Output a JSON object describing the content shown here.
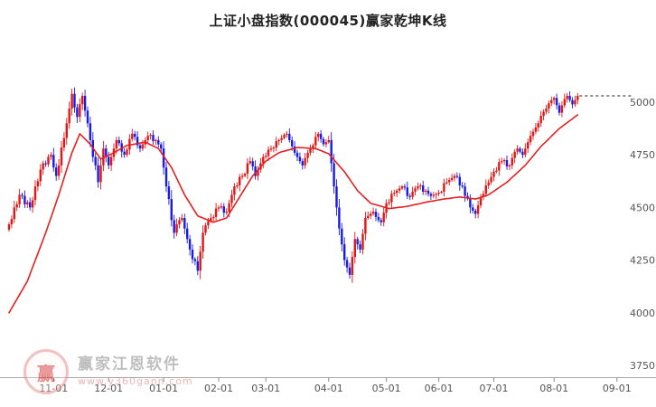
{
  "page": {
    "title": "上证小盘指数(000045)赢家乾坤K线"
  },
  "watermark": {
    "logo_char": "赢",
    "brand": "赢家江恩软件",
    "url": "www.y360gann.com"
  },
  "chart_data": {
    "type": "candlestick",
    "title": "上证小盘指数(000045)赢家乾坤K线",
    "xlabel": "",
    "ylabel": "",
    "grid": false,
    "legend": "none",
    "y_ticks": [
      5000,
      4750,
      4500,
      4250,
      4000,
      3750
    ],
    "ylim": [
      3750,
      5100
    ],
    "x_tick_labels": [
      "11-01",
      "12-01",
      "01-01",
      "02-01",
      "03-01",
      "04-01",
      "05-01",
      "06-01",
      "07-01",
      "08-01",
      "09-01"
    ],
    "x_tick_days": [
      17,
      38,
      59,
      80,
      98,
      122,
      144,
      164,
      185,
      208,
      232
    ],
    "last_price": 5030,
    "colors": {
      "up": "#e61414",
      "down": "#1a1ae6",
      "ma": "#e62020",
      "dotted": "#222222",
      "axis_line": "#aaaaaa",
      "tick_text": "#555555",
      "background": "#ffffff"
    },
    "closes": [
      4420,
      4445,
      4500,
      4515,
      4560,
      4555,
      4515,
      4525,
      4500,
      4535,
      4600,
      4625,
      4680,
      4710,
      4705,
      4740,
      4750,
      4690,
      4650,
      4700,
      4785,
      4830,
      4900,
      4970,
      5040,
      4975,
      4930,
      4990,
      5030,
      4960,
      4900,
      4820,
      4740,
      4700,
      4620,
      4700,
      4780,
      4740,
      4700,
      4740,
      4780,
      4820,
      4805,
      4765,
      4750,
      4775,
      4825,
      4850,
      4835,
      4795,
      4780,
      4800,
      4820,
      4840,
      4845,
      4815,
      4820,
      4800,
      4780,
      4690,
      4600,
      4540,
      4440,
      4380,
      4420,
      4440,
      4450,
      4400,
      4350,
      4300,
      4255,
      4245,
      4200,
      4290,
      4380,
      4415,
      4435,
      4450,
      4455,
      4495,
      4500,
      4505,
      4475,
      4480,
      4520,
      4560,
      4600,
      4605,
      4645,
      4650,
      4660,
      4710,
      4720,
      4695,
      4650,
      4680,
      4710,
      4740,
      4745,
      4775,
      4780,
      4785,
      4815,
      4820,
      4830,
      4845,
      4850,
      4820,
      4790,
      4760,
      4740,
      4720,
      4700,
      4735,
      4760,
      4780,
      4795,
      4835,
      4850,
      4825,
      4800,
      4810,
      4820,
      4710,
      4600,
      4500,
      4400,
      4325,
      4250,
      4215,
      4180,
      4265,
      4350,
      4325,
      4300,
      4375,
      4450,
      4460,
      4470,
      4480,
      4455,
      4440,
      4430,
      4475,
      4520,
      4525,
      4565,
      4570,
      4580,
      4590,
      4600,
      4595,
      4555,
      4550,
      4575,
      4590,
      4600,
      4605,
      4575,
      4580,
      4565,
      4555,
      4560,
      4565,
      4570,
      4575,
      4615,
      4620,
      4630,
      4640,
      4650,
      4645,
      4605,
      4600,
      4555,
      4545,
      4500,
      4485,
      4470,
      4510,
      4550,
      4565,
      4605,
      4620,
      4645,
      4670,
      4675,
      4715,
      4720,
      4725,
      4695,
      4700,
      4735,
      4765,
      4780,
      4765,
      4750,
      4780,
      4810,
      4840,
      4860,
      4880,
      4900,
      4935,
      4955,
      4970,
      4995,
      5010,
      5020,
      4985,
      4950,
      4985,
      5015,
      5030,
      5010,
      4990,
      5010,
      5030
    ],
    "ma_line": [
      4000,
      4021,
      4043,
      4064,
      4086,
      4107,
      4129,
      4150,
      4183,
      4216,
      4249,
      4281,
      4314,
      4347,
      4380,
      4416,
      4452,
      4488,
      4524,
      4560,
      4600,
      4640,
      4680,
      4720,
      4760,
      4790,
      4820,
      4850,
      4838,
      4825,
      4813,
      4800,
      4783,
      4765,
      4748,
      4730,
      4736,
      4742,
      4748,
      4754,
      4760,
      4767,
      4774,
      4781,
      4788,
      4795,
      4797,
      4799,
      4801,
      4803,
      4806,
      4808,
      4810,
      4804,
      4798,
      4792,
      4786,
      4780,
      4762,
      4744,
      4726,
      4708,
      4690,
      4664,
      4638,
      4612,
      4586,
      4560,
      4540,
      4520,
      4500,
      4480,
      4460,
      4455,
      4450,
      4445,
      4440,
      4435,
      4430,
      4434,
      4438,
      4442,
      4446,
      4450,
      4470,
      4490,
      4510,
      4530,
      4550,
      4570,
      4590,
      4610,
      4630,
      4650,
      4664,
      4678,
      4692,
      4706,
      4720,
      4728,
      4736,
      4744,
      4752,
      4760,
      4764,
      4767,
      4771,
      4774,
      4778,
      4781,
      4785,
      4784,
      4784,
      4783,
      4782,
      4781,
      4781,
      4780,
      4775,
      4770,
      4765,
      4760,
      4755,
      4741,
      4727,
      4712,
      4698,
      4684,
      4670,
      4652,
      4634,
      4616,
      4598,
      4580,
      4568,
      4556,
      4544,
      4532,
      4520,
      4516,
      4513,
      4509,
      4506,
      4502,
      4499,
      4495,
      4496,
      4498,
      4499,
      4501,
      4502,
      4504,
      4505,
      4508,
      4511,
      4514,
      4516,
      4519,
      4522,
      4525,
      4527,
      4529,
      4531,
      4534,
      4536,
      4538,
      4540,
      4542,
      4543,
      4545,
      4547,
      4548,
      4550,
      4548,
      4547,
      4545,
      4543,
      4542,
      4540,
      4544,
      4548,
      4552,
      4556,
      4560,
      4569,
      4577,
      4586,
      4594,
      4603,
      4611,
      4620,
      4631,
      4643,
      4654,
      4666,
      4677,
      4689,
      4700,
      4715,
      4730,
      4745,
      4760,
      4775,
      4790,
      4802,
      4814,
      4826,
      4839,
      4851,
      4863,
      4875,
      4884,
      4894,
      4903,
      4912,
      4921,
      4931,
      4940
    ]
  }
}
